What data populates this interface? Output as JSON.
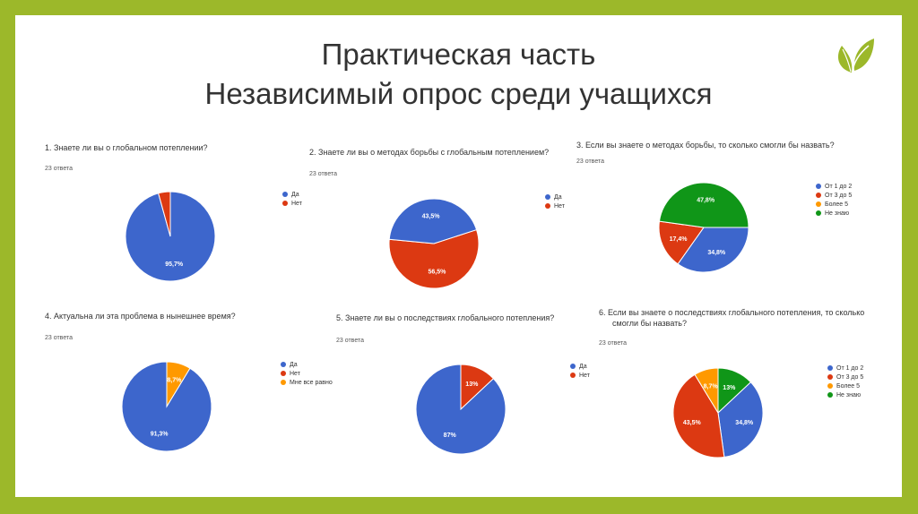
{
  "title": {
    "line1": "Практическая часть",
    "line2": "Независимый опрос среди учащихся"
  },
  "logo": {
    "icon": "leaf-icon",
    "color": "#9cb82a"
  },
  "colors": {
    "blue": "#3d66cc",
    "red": "#dc3912",
    "orange": "#ff9900",
    "green": "#109618"
  },
  "chart_data": [
    {
      "type": "pie",
      "title": "1. Знаете ли вы о глобальном потеплении?",
      "responses": "23 ответа",
      "categories": [
        "Да",
        "Нет"
      ],
      "values": [
        95.7,
        4.3
      ],
      "labels": [
        "95,7%",
        ""
      ],
      "legend": "right"
    },
    {
      "type": "pie",
      "title": "2. Знаете ли вы о методах борьбы с глобальным потеплением?",
      "responses": "23 ответа",
      "categories": [
        "Да",
        "Нет"
      ],
      "values": [
        43.5,
        56.5
      ],
      "labels": [
        "43,5%",
        "56,5%"
      ],
      "legend": "right"
    },
    {
      "type": "pie",
      "title": "3. Если вы знаете о методах борьбы, то сколько смогли бы назвать?",
      "responses": "23 ответа",
      "categories": [
        "От 1 до 2",
        "От 3 до 5",
        "Более 5",
        "Не знаю"
      ],
      "values": [
        34.8,
        17.4,
        0,
        47.8
      ],
      "labels": [
        "34,8%",
        "17,4%",
        "",
        "47,8%"
      ],
      "legend": "right"
    },
    {
      "type": "pie",
      "title": "4. Актуальна ли эта проблема в нынешнее время?",
      "responses": "23 ответа",
      "categories": [
        "Да",
        "Нет",
        "Мне все равно"
      ],
      "values": [
        91.3,
        0,
        8.7
      ],
      "labels": [
        "91,3%",
        "",
        "8,7%"
      ],
      "legend": "right"
    },
    {
      "type": "pie",
      "title": "5. Знаете ли вы о последствиях глобального потепления?",
      "responses": "23 ответа",
      "categories": [
        "Да",
        "Нет"
      ],
      "values": [
        87,
        13
      ],
      "labels": [
        "87%",
        "13%"
      ],
      "legend": "left"
    },
    {
      "type": "pie",
      "title": "6. Если вы знаете о последствиях глобального потепления, то сколько",
      "title_line2": "смогли бы назвать?",
      "responses": "23 ответа",
      "categories": [
        "От 1 до 2",
        "От 3 до 5",
        "Более 5",
        "Не знаю"
      ],
      "values": [
        34.8,
        43.5,
        8.7,
        13
      ],
      "labels": [
        "34,8%",
        "43,5%",
        "8,7%",
        "13%"
      ],
      "legend": "right"
    }
  ]
}
